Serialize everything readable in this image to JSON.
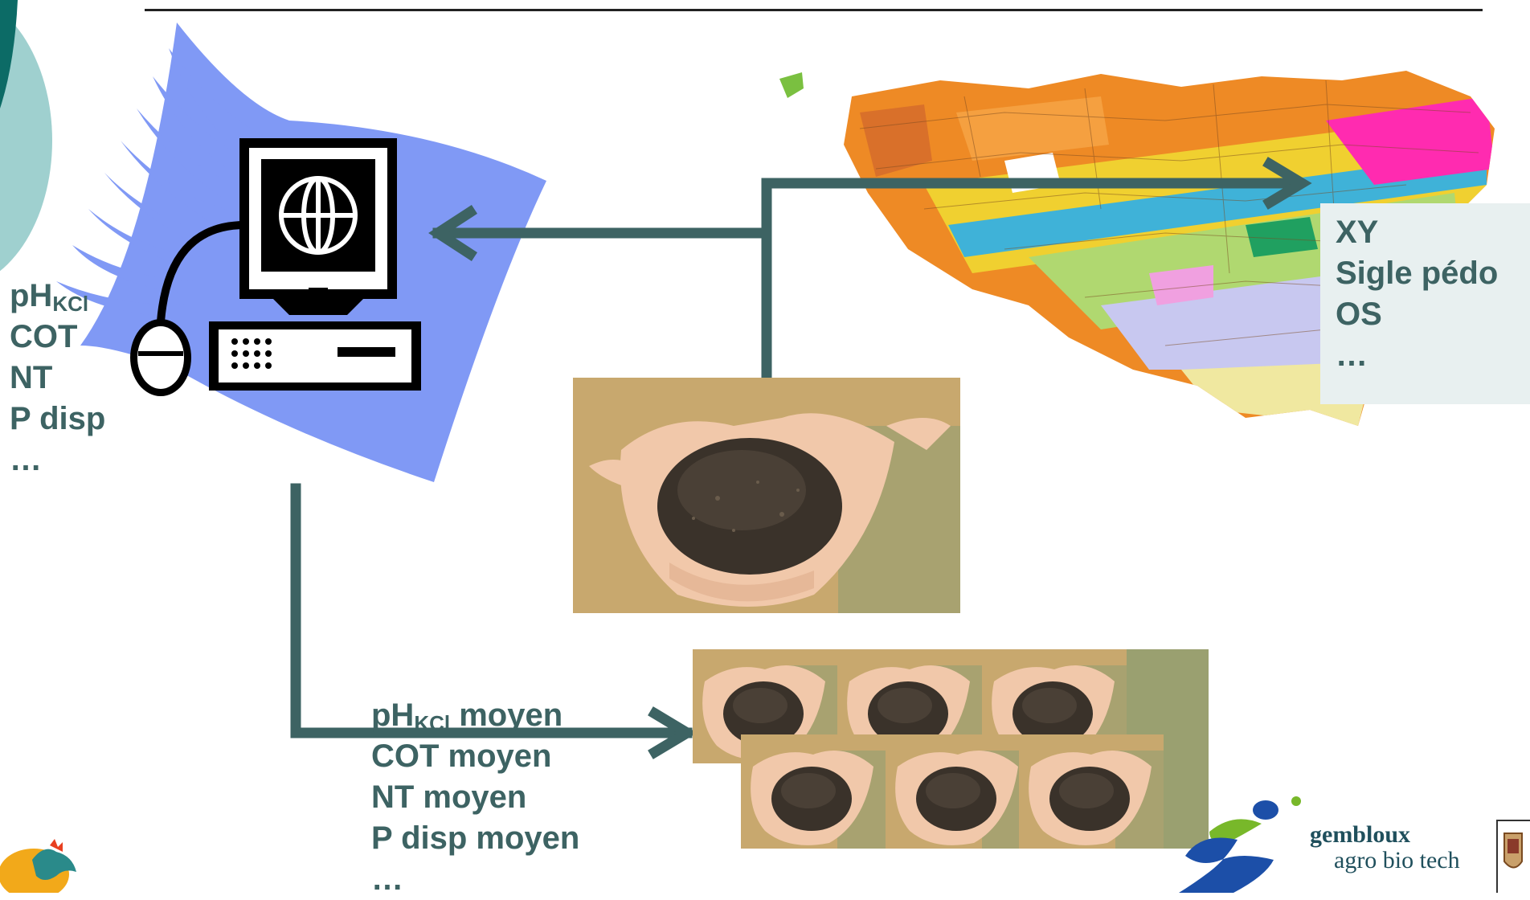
{
  "left_params": {
    "ph": "pH",
    "ph_sub": "KCl",
    "items": [
      "COT",
      "NT",
      "P disp",
      "…"
    ]
  },
  "map_params": {
    "items": [
      "XY",
      "Sigle pédo",
      "OS",
      "…"
    ]
  },
  "mean_params": {
    "ph": "pH",
    "ph_sub": "KCl",
    "ph_suffix": " moyen",
    "items": [
      "COT moyen",
      "NT moyen",
      "P disp moyen",
      "…"
    ]
  },
  "logo": {
    "line1": "gembloux",
    "line2": "agro bio tech"
  },
  "colors": {
    "arrow": "#3d6363",
    "text": "#3d6363",
    "blue_swoosh": "#8099f5",
    "teal_circle": "#9fd0cf",
    "dark_teal": "#0c6b66",
    "panel_bg": "#e8f0f0"
  },
  "icons": [
    "computer-icon",
    "globe-icon",
    "mouse-icon",
    "soil-photo",
    "soil-map",
    "wallonia-rooster-logo",
    "gembloux-logo",
    "university-crest"
  ]
}
